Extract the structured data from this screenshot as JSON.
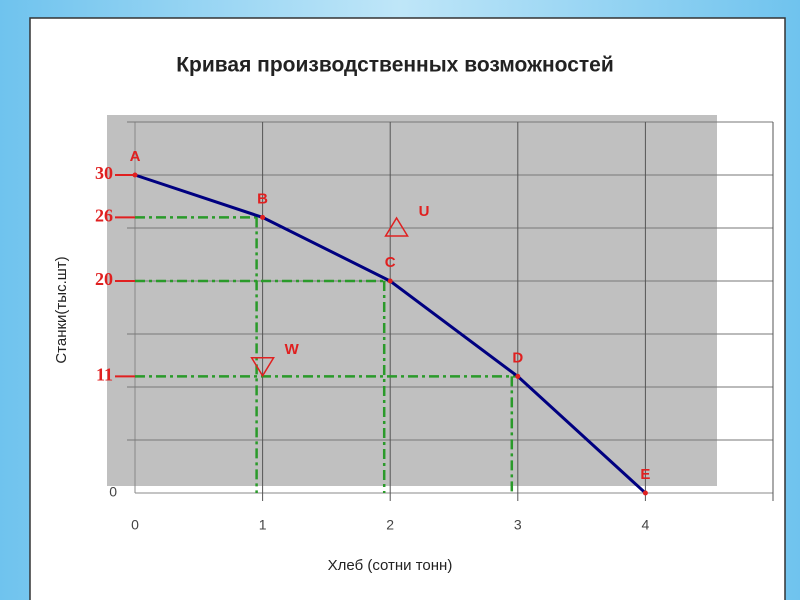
{
  "chart_data": {
    "type": "line",
    "title": "Кривая производственных возможностей",
    "x_label": "Хлеб (сотни тонн)",
    "y_label": "Станки(тыс.шт)",
    "x": [
      0,
      1,
      2,
      3,
      4
    ],
    "series": [
      {
        "color": "#000080",
        "point_color": "#e02020",
        "values": [
          30,
          26,
          20,
          11,
          0
        ],
        "point_labels": [
          "A",
          "B",
          "C",
          "D",
          "E"
        ]
      }
    ],
    "xlim": [
      0,
      5
    ],
    "xticks": [
      0,
      1,
      2,
      3,
      4
    ],
    "xgrid": [
      1,
      2,
      3,
      4,
      5
    ],
    "ylim": [
      0,
      35
    ],
    "yticks": [
      0
    ],
    "ygrid": [
      5,
      10,
      15,
      20,
      25,
      30,
      35
    ],
    "highlight_yticks": [
      30,
      26,
      20,
      11
    ],
    "highlight_color": "#e02020",
    "guide_color": "#2a9a2a",
    "markers": [
      {
        "label": "U",
        "x": 2.05,
        "y": 25,
        "shape": "up"
      },
      {
        "label": "W",
        "x": 1,
        "y": 12,
        "shape": "down"
      }
    ],
    "grid": true,
    "plot_background": "#c0c0c0"
  }
}
